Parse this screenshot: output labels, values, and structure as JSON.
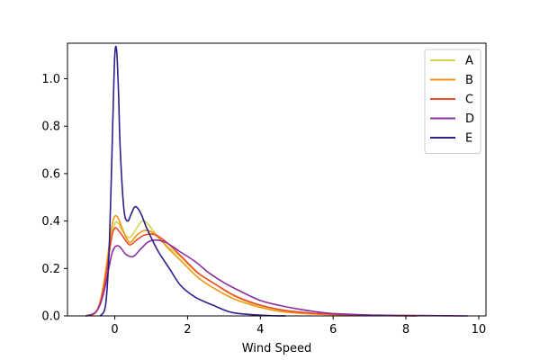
{
  "chart_data": {
    "type": "line",
    "title": "",
    "xlabel": "Wind Speed",
    "ylabel": "",
    "xlim": [
      -1.3,
      10.2
    ],
    "ylim": [
      0,
      1.15
    ],
    "x_ticks": [
      0,
      2,
      4,
      6,
      8,
      10
    ],
    "y_ticks": [
      0.0,
      0.2,
      0.4,
      0.6,
      0.8,
      1.0
    ],
    "x_tick_labels": [
      "0",
      "2",
      "4",
      "6",
      "8",
      "10"
    ],
    "y_tick_labels": [
      "0.0",
      "0.2",
      "0.4",
      "0.6",
      "0.8",
      "1.0"
    ],
    "grid": false,
    "legend_position": "top-right",
    "series": [
      {
        "name": "A",
        "color": "#d4d451",
        "x": [
          -0.8,
          -0.5,
          -0.3,
          -0.1,
          0.0,
          0.1,
          0.2,
          0.4,
          0.6,
          0.75,
          0.9,
          1.1,
          1.4,
          1.8,
          2.2,
          2.7,
          3.2,
          3.8,
          4.5,
          5.2,
          6.0,
          7.0,
          8.0
        ],
        "values": [
          0.0,
          0.02,
          0.12,
          0.32,
          0.39,
          0.39,
          0.36,
          0.33,
          0.37,
          0.4,
          0.39,
          0.35,
          0.3,
          0.25,
          0.19,
          0.14,
          0.09,
          0.05,
          0.025,
          0.012,
          0.006,
          0.003,
          0.001
        ]
      },
      {
        "name": "B",
        "color": "#f0960f",
        "x": [
          -0.8,
          -0.5,
          -0.3,
          -0.1,
          0.0,
          0.1,
          0.2,
          0.4,
          0.6,
          0.8,
          1.0,
          1.2,
          1.5,
          1.9,
          2.3,
          2.8,
          3.3,
          3.9,
          4.5,
          5.2,
          6.0,
          7.0,
          8.3
        ],
        "values": [
          0.0,
          0.02,
          0.14,
          0.36,
          0.42,
          0.41,
          0.37,
          0.31,
          0.34,
          0.36,
          0.355,
          0.33,
          0.28,
          0.22,
          0.16,
          0.11,
          0.07,
          0.04,
          0.02,
          0.01,
          0.005,
          0.002,
          0.0
        ]
      },
      {
        "name": "C",
        "color": "#f04a2e",
        "x": [
          -0.8,
          -0.5,
          -0.3,
          -0.1,
          0.0,
          0.1,
          0.2,
          0.4,
          0.6,
          0.8,
          1.0,
          1.2,
          1.5,
          1.9,
          2.3,
          2.8,
          3.3,
          3.9,
          4.6,
          5.3,
          6.2,
          7.2,
          8.3
        ],
        "values": [
          0.0,
          0.02,
          0.12,
          0.32,
          0.37,
          0.36,
          0.34,
          0.3,
          0.32,
          0.34,
          0.345,
          0.335,
          0.3,
          0.24,
          0.18,
          0.13,
          0.085,
          0.05,
          0.025,
          0.013,
          0.006,
          0.002,
          0.0
        ]
      },
      {
        "name": "D",
        "color": "#8a2fa0",
        "x": [
          -0.8,
          -0.5,
          -0.3,
          -0.1,
          0.0,
          0.1,
          0.2,
          0.3,
          0.5,
          0.7,
          0.9,
          1.1,
          1.4,
          1.8,
          2.2,
          2.6,
          3.0,
          3.5,
          4.0,
          4.5,
          5.0,
          5.5,
          6.0,
          7.0,
          8.0,
          9.7
        ],
        "values": [
          0.0,
          0.02,
          0.1,
          0.25,
          0.29,
          0.295,
          0.28,
          0.26,
          0.25,
          0.28,
          0.31,
          0.32,
          0.31,
          0.27,
          0.23,
          0.18,
          0.14,
          0.1,
          0.065,
          0.045,
          0.03,
          0.018,
          0.01,
          0.004,
          0.002,
          0.0
        ]
      },
      {
        "name": "E",
        "color": "#2b1f8c",
        "x": [
          -0.4,
          -0.25,
          -0.15,
          -0.05,
          0.0,
          0.05,
          0.1,
          0.15,
          0.25,
          0.35,
          0.45,
          0.55,
          0.65,
          0.75,
          0.85,
          1.0,
          1.2,
          1.5,
          1.8,
          2.2,
          2.7,
          3.2,
          3.8,
          4.3,
          4.7
        ],
        "values": [
          0.0,
          0.05,
          0.3,
          0.85,
          1.1,
          1.12,
          0.95,
          0.7,
          0.45,
          0.4,
          0.43,
          0.46,
          0.45,
          0.42,
          0.38,
          0.33,
          0.27,
          0.2,
          0.13,
          0.08,
          0.045,
          0.015,
          0.005,
          0.001,
          0.0
        ]
      }
    ]
  }
}
